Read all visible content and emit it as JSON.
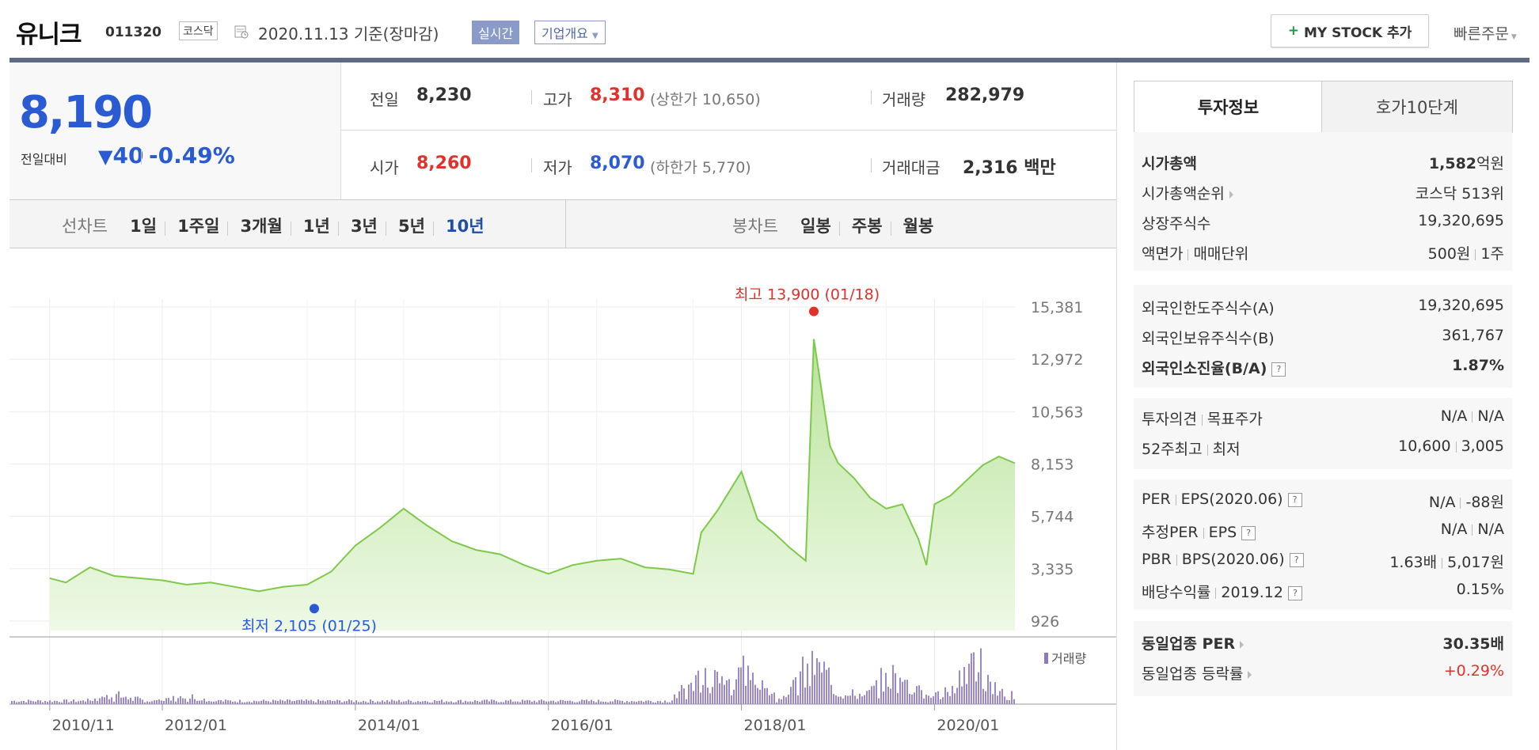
{
  "header": {
    "name": "유니크",
    "code": "011320",
    "market": "코스닥",
    "date": "2020.11.13 기준(장마감)",
    "realtime": "실시간",
    "company_overview": "기업개요",
    "mystock_label": "MY STOCK 추가",
    "quick_order": "빠른주문"
  },
  "price": {
    "current": "8,190",
    "change_label": "전일대비",
    "change_value": "40",
    "change_direction": "down",
    "change_pct": "-0.49%"
  },
  "stats": {
    "prev_label": "전일",
    "prev": "8,230",
    "high_label": "고가",
    "high": "8,310",
    "upper_limit": "(상한가 10,650)",
    "volume_label": "거래량",
    "volume": "282,979",
    "open_label": "시가",
    "open": "8,260",
    "low_label": "저가",
    "low": "8,070",
    "lower_limit": "(하한가 5,770)",
    "amount_label": "거래대금",
    "amount": "2,316 백만"
  },
  "periods": {
    "line_label": "선차트",
    "items": [
      "1일",
      "1주일",
      "3개월",
      "1년",
      "3년",
      "5년",
      "10년"
    ],
    "active": "10년",
    "candle_label": "봉차트",
    "candles": [
      "일봉",
      "주봉",
      "월봉"
    ]
  },
  "chart_data": {
    "type": "area",
    "x_ticks": [
      "2010/11",
      "2012/01",
      "2014/01",
      "2016/01",
      "2018/01",
      "2020/01"
    ],
    "y_ticks": [
      15381,
      12972,
      10563,
      8153,
      5744,
      3335,
      926
    ],
    "ylim": [
      926,
      15381
    ],
    "max_label": "최고 13,900 (01/18)",
    "min_label": "최저 2,105 (01/25)",
    "volume_legend": "거래량",
    "series": [
      {
        "x": [
          "2010/11",
          "2011/01",
          "2011/04",
          "2011/07",
          "2011/10",
          "2012/01",
          "2012/04",
          "2012/07",
          "2012/10",
          "2013/01",
          "2013/04",
          "2013/07",
          "2013/10",
          "2014/01",
          "2014/04",
          "2014/07",
          "2014/10",
          "2015/01",
          "2015/04",
          "2015/07",
          "2015/10",
          "2016/01",
          "2016/04",
          "2016/07",
          "2016/10",
          "2017/01",
          "2017/04",
          "2017/07",
          "2017/08",
          "2017/10",
          "2018/01",
          "2018/03",
          "2018/05",
          "2018/07",
          "2018/09",
          "2018/10",
          "2018/12",
          "2019/01",
          "2019/03",
          "2019/05",
          "2019/07",
          "2019/09",
          "2019/11",
          "2019/12",
          "2020/01",
          "2020/03",
          "2020/05",
          "2020/07",
          "2020/09",
          "2020/11"
        ],
        "values": [
          2900,
          2700,
          3400,
          3000,
          2900,
          2800,
          2600,
          2700,
          2500,
          2300,
          2500,
          2600,
          3200,
          4400,
          5200,
          6100,
          5300,
          4600,
          4200,
          4000,
          3500,
          3100,
          3500,
          3700,
          3800,
          3400,
          3300,
          3100,
          5000,
          6000,
          7800,
          5600,
          5000,
          4300,
          3700,
          13900,
          9000,
          8200,
          7500,
          6600,
          6100,
          6300,
          4700,
          3500,
          6300,
          6700,
          7400,
          8100,
          8500,
          8190
        ]
      }
    ]
  },
  "investment": {
    "tab_invest": "투자정보",
    "tab_hoga": "호가10단계",
    "market_cap_label": "시가총액",
    "market_cap_value": "1,582",
    "market_cap_unit": "억원",
    "rank_label": "시가총액순위",
    "rank_value": "코스닥 513위",
    "shares_label": "상장주식수",
    "shares_value": "19,320,695",
    "par_label": "액면가",
    "unit_label": "매매단위",
    "par_value": "500원",
    "unit_value": "1주",
    "foreign_limit_label": "외국인한도주식수(A)",
    "foreign_limit_value": "19,320,695",
    "foreign_hold_label": "외국인보유주식수(B)",
    "foreign_hold_value": "361,767",
    "foreign_ratio_label": "외국인소진율(B/A)",
    "foreign_ratio_value": "1.87%",
    "opinion_label": "투자의견",
    "target_label": "목표주가",
    "opinion_value": "N/A",
    "target_value": "N/A",
    "high52_label": "52주최고",
    "low52_label": "최저",
    "high52_value": "10,600",
    "low52_value": "3,005",
    "per_label": "PER",
    "eps_label": "EPS(2020.06)",
    "per_value": "N/A",
    "eps_value": "-88원",
    "est_per_label": "추정PER",
    "est_eps_label": "EPS",
    "est_per_value": "N/A",
    "est_eps_value": "N/A",
    "pbr_label": "PBR",
    "bps_label": "BPS(2020.06)",
    "pbr_value": "1.63배",
    "bps_value": "5,017원",
    "div_label": "배당수익률",
    "div_date": "2019.12",
    "div_value": "0.15%",
    "sector_per_label": "동일업종 PER",
    "sector_per_value": "30.35배",
    "sector_change_label": "동일업종 등락률",
    "sector_change_value": "+0.29%"
  }
}
